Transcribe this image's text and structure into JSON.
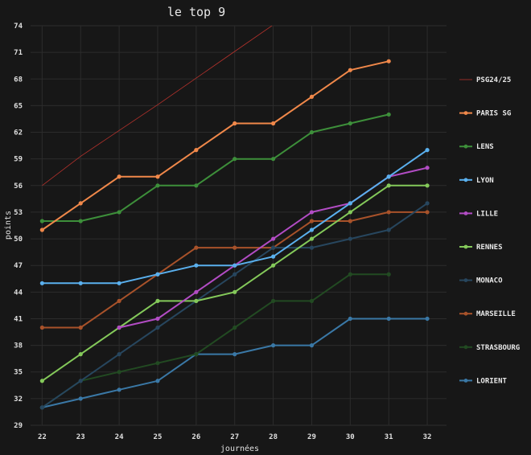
{
  "chart_data": {
    "type": "line",
    "title": "le top 9",
    "xlabel": "journées",
    "ylabel": "points",
    "x": [
      22,
      23,
      24,
      25,
      26,
      27,
      28,
      29,
      30,
      31,
      32
    ],
    "xlim": [
      21.7,
      32.5
    ],
    "ylim": [
      29,
      74
    ],
    "yticks": [
      29,
      32,
      35,
      38,
      41,
      44,
      47,
      50,
      53,
      56,
      59,
      62,
      65,
      68,
      71,
      74
    ],
    "grid": true,
    "legend_position": "right",
    "series": [
      {
        "name": "PSG24/25",
        "color": "#b5322c",
        "markers": false,
        "width": 0.8,
        "x": [
          22,
          23,
          24,
          25,
          26,
          27,
          28
        ],
        "values": [
          56,
          59.3,
          62.2,
          65.1,
          68.1,
          71.1,
          74.1
        ]
      },
      {
        "name": "PARIS SG",
        "color": "#f0884a",
        "markers": true,
        "width": 2,
        "x": [
          22,
          23,
          24,
          25,
          26,
          27,
          28,
          29,
          30,
          31
        ],
        "values": [
          51,
          54,
          57,
          57,
          60,
          63,
          63,
          66,
          69,
          70
        ]
      },
      {
        "name": "LENS",
        "color": "#3d8f3a",
        "markers": true,
        "width": 2,
        "x": [
          22,
          23,
          24,
          25,
          26,
          27,
          28,
          29,
          30,
          31
        ],
        "values": [
          52,
          52,
          53,
          56,
          56,
          59,
          59,
          62,
          63,
          64
        ]
      },
      {
        "name": "LYON",
        "color": "#5ab0ee",
        "markers": true,
        "width": 2,
        "x": [
          22,
          23,
          24,
          25,
          26,
          27,
          28,
          29,
          30,
          31,
          32
        ],
        "values": [
          45,
          45,
          45,
          46,
          47,
          47,
          48,
          51,
          54,
          57,
          60
        ]
      },
      {
        "name": "LILLE",
        "color": "#b24cc4",
        "markers": true,
        "width": 2,
        "x": [
          24,
          25,
          26,
          27,
          28,
          29,
          30,
          31,
          32
        ],
        "values": [
          40,
          41,
          44,
          47,
          50,
          53,
          54,
          57,
          58
        ]
      },
      {
        "name": "RENNES",
        "color": "#84c95a",
        "markers": true,
        "width": 2,
        "x": [
          22,
          23,
          24,
          25,
          26,
          27,
          28,
          29,
          30,
          31,
          32
        ],
        "values": [
          34,
          37,
          40,
          43,
          43,
          44,
          47,
          50,
          53,
          56,
          56
        ]
      },
      {
        "name": "MONACO",
        "color": "#27465e",
        "markers": true,
        "width": 2,
        "x": [
          22,
          23,
          24,
          25,
          26,
          27,
          28,
          29,
          30,
          31,
          32
        ],
        "values": [
          31,
          34,
          37,
          40,
          43,
          46,
          49,
          49,
          50,
          51,
          54
        ]
      },
      {
        "name": "MARSEILLE",
        "color": "#a8522a",
        "markers": true,
        "width": 2,
        "x": [
          22,
          23,
          24,
          25,
          26,
          27,
          28,
          29,
          30,
          31,
          32
        ],
        "values": [
          40,
          40,
          43,
          46,
          49,
          49,
          49,
          52,
          52,
          53,
          53
        ]
      },
      {
        "name": "STRASBOURG",
        "color": "#224a22",
        "markers": true,
        "width": 2,
        "x": [
          22,
          23,
          24,
          25,
          26,
          27,
          28,
          29,
          30,
          31
        ],
        "values": [
          31,
          34,
          35,
          36,
          37,
          40,
          43,
          43,
          46,
          46
        ]
      },
      {
        "name": "LORIENT",
        "color": "#3a78a6",
        "markers": true,
        "width": 2,
        "x": [
          22,
          23,
          24,
          25,
          26,
          27,
          28,
          29,
          30,
          31,
          32
        ],
        "values": [
          31,
          32,
          33,
          34,
          37,
          37,
          38,
          38,
          41,
          41,
          41
        ]
      }
    ]
  }
}
